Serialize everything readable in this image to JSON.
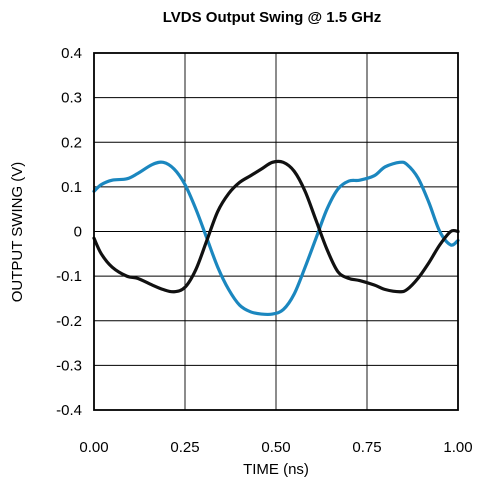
{
  "chart_data": {
    "type": "line",
    "title": "LVDS Output Swing @ 1.5 GHz",
    "xlabel": "TIME (ns)",
    "ylabel": "OUTPUT SWING (V)",
    "xlim": [
      0,
      1
    ],
    "ylim": [
      -0.4,
      0.4
    ],
    "x_ticks": [
      0,
      0.25,
      0.5,
      0.75,
      1
    ],
    "x_tick_labels": [
      "0.00",
      "0.25",
      "0.50",
      "0.75",
      "1.00"
    ],
    "y_ticks": [
      0.4,
      0.3,
      0.2,
      0.1,
      0,
      -0.1,
      -0.2,
      -0.3,
      -0.4
    ],
    "y_tick_labels": [
      "0.4",
      "0.3",
      "0.2",
      "0.1",
      "0",
      "-0.1",
      "-0.2",
      "-0.3",
      "-0.4"
    ],
    "grid": true,
    "series": [
      {
        "color": "#1b87bf",
        "x": [
          0,
          0.02,
          0.05,
          0.09,
          0.12,
          0.16,
          0.19,
          0.22,
          0.25,
          0.28,
          0.31,
          0.34,
          0.37,
          0.4,
          0.43,
          0.46,
          0.49,
          0.52,
          0.55,
          0.58,
          0.61,
          0.64,
          0.67,
          0.7,
          0.73,
          0.77,
          0.8,
          0.84,
          0.86,
          0.89,
          0.92,
          0.95,
          0.98,
          1.0
        ],
        "y": [
          0.09,
          0.105,
          0.115,
          0.118,
          0.13,
          0.15,
          0.155,
          0.14,
          0.105,
          0.05,
          -0.015,
          -0.08,
          -0.13,
          -0.165,
          -0.18,
          -0.185,
          -0.185,
          -0.175,
          -0.14,
          -0.08,
          -0.015,
          0.05,
          0.095,
          0.113,
          0.115,
          0.125,
          0.145,
          0.155,
          0.15,
          0.12,
          0.065,
          0.0,
          -0.03,
          -0.02
        ]
      },
      {
        "color": "#111111",
        "x": [
          0,
          0.02,
          0.05,
          0.09,
          0.12,
          0.16,
          0.19,
          0.22,
          0.25,
          0.28,
          0.31,
          0.34,
          0.37,
          0.4,
          0.43,
          0.46,
          0.49,
          0.52,
          0.55,
          0.58,
          0.61,
          0.64,
          0.67,
          0.7,
          0.73,
          0.77,
          0.8,
          0.84,
          0.86,
          0.89,
          0.92,
          0.95,
          0.98,
          1.0
        ],
        "y": [
          -0.015,
          -0.05,
          -0.08,
          -0.1,
          -0.105,
          -0.12,
          -0.13,
          -0.135,
          -0.125,
          -0.085,
          -0.02,
          0.045,
          0.085,
          0.11,
          0.125,
          0.14,
          0.155,
          0.155,
          0.135,
          0.09,
          0.025,
          -0.04,
          -0.09,
          -0.105,
          -0.11,
          -0.12,
          -0.13,
          -0.135,
          -0.13,
          -0.105,
          -0.07,
          -0.03,
          0.0,
          0.0
        ]
      }
    ]
  }
}
